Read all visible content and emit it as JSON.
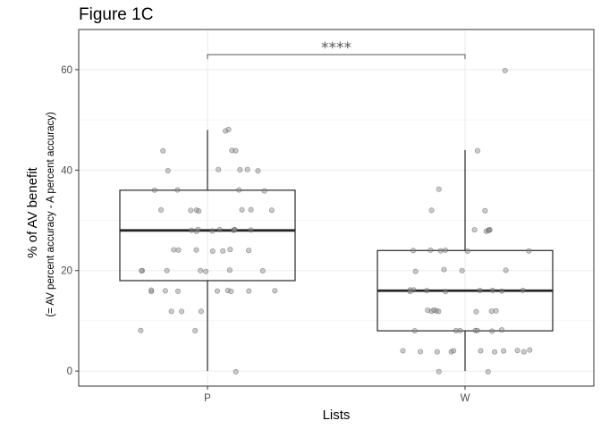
{
  "colors": {
    "box_line": "#262626",
    "point_fill": "#8c8c8c",
    "point_stroke": "#4d4d4d",
    "grid": "#ebebeb",
    "panel_border": "#333333",
    "bracket": "#595959"
  },
  "chart_data": {
    "type": "box",
    "title": "Figure 1C",
    "xlabel": "Lists",
    "ylabel": "% of AV benefit",
    "ylabel_sub": "(= AV percent accuracy - A percent accuracy)",
    "categories": [
      "P",
      "W"
    ],
    "ylim": [
      -3,
      68
    ],
    "yticks": [
      0,
      20,
      40,
      60
    ],
    "grid": true,
    "legend": "none",
    "boxes": [
      {
        "category": "P",
        "whisker_low": 0,
        "q1": 18,
        "median": 28,
        "q3": 36,
        "whisker_high": 48
      },
      {
        "category": "W",
        "whisker_low": 0,
        "q1": 8,
        "median": 16,
        "q3": 24,
        "whisker_high": 44
      }
    ],
    "significance": {
      "label": "****",
      "between": [
        "P",
        "W"
      ],
      "y": 63
    },
    "points": [
      {
        "category": "P",
        "values": [
          48,
          48,
          44,
          44,
          44,
          40,
          40,
          40,
          40,
          40,
          36,
          36,
          36,
          36,
          32,
          32,
          32,
          32,
          32,
          32,
          32,
          28,
          28,
          28,
          28,
          28,
          28,
          28,
          28,
          28,
          24,
          24,
          24,
          24,
          24,
          24,
          24,
          20,
          20,
          20,
          20,
          20,
          20,
          20,
          16,
          16,
          16,
          16,
          16,
          16,
          16,
          16,
          16,
          12,
          12,
          12,
          8,
          8,
          0
        ]
      },
      {
        "category": "W",
        "values": [
          60,
          44,
          36,
          32,
          32,
          28,
          28,
          28,
          28,
          28,
          24,
          24,
          24,
          24,
          24,
          24,
          20,
          20,
          20,
          20,
          16,
          16,
          16,
          16,
          16,
          16,
          16,
          16,
          16,
          12,
          12,
          12,
          12,
          12,
          12,
          12,
          12,
          8,
          8,
          8,
          8,
          8,
          8,
          8,
          4,
          4,
          4,
          4,
          4,
          4,
          4,
          4,
          4,
          4,
          4,
          0,
          0
        ]
      }
    ]
  }
}
